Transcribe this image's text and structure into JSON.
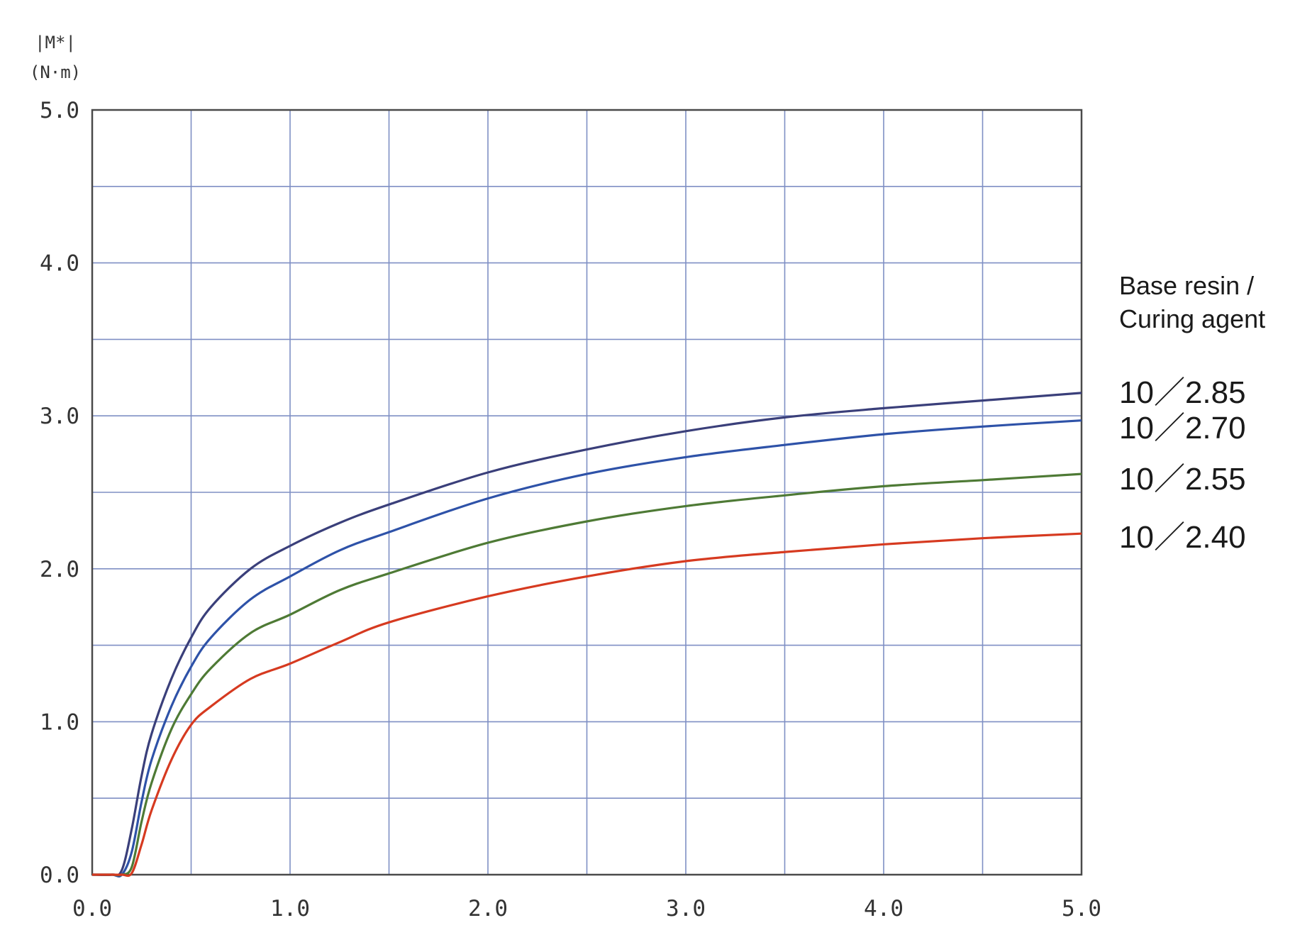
{
  "chart_data": {
    "type": "line",
    "title": "",
    "ylabel_line1": "|M*|",
    "ylabel_line2": "(N·m)",
    "xlabel": "",
    "xlim": [
      0,
      5
    ],
    "ylim": [
      0,
      5
    ],
    "grid": true,
    "x_ticks": [
      "0.0",
      "1.0",
      "2.0",
      "3.0",
      "4.0",
      "5.0"
    ],
    "y_ticks": [
      "0.0",
      "1.0",
      "2.0",
      "3.0",
      "4.0",
      "5.0"
    ],
    "legend_title_line1": "Base resin /",
    "legend_title_line2": "Curing agent",
    "legend_placement": "right",
    "x": [
      0.0,
      0.1,
      0.15,
      0.2,
      0.25,
      0.3,
      0.4,
      0.5,
      0.6,
      0.8,
      1.0,
      1.25,
      1.5,
      2.0,
      2.5,
      3.0,
      3.5,
      4.0,
      4.5,
      5.0
    ],
    "series": [
      {
        "name": "10／2.85",
        "color": "#3a3f7a",
        "values": [
          0.0,
          0.0,
          0.03,
          0.3,
          0.65,
          0.92,
          1.28,
          1.55,
          1.75,
          2.0,
          2.15,
          2.3,
          2.42,
          2.63,
          2.78,
          2.9,
          2.99,
          3.05,
          3.1,
          3.15
        ]
      },
      {
        "name": "10／2.70",
        "color": "#2e52a8",
        "values": [
          0.0,
          0.0,
          0.0,
          0.15,
          0.48,
          0.75,
          1.1,
          1.36,
          1.55,
          1.8,
          1.95,
          2.12,
          2.24,
          2.46,
          2.62,
          2.73,
          2.81,
          2.88,
          2.93,
          2.97
        ]
      },
      {
        "name": "10／2.55",
        "color": "#4e7a35",
        "values": [
          0.0,
          0.0,
          0.0,
          0.05,
          0.35,
          0.6,
          0.95,
          1.18,
          1.35,
          1.58,
          1.7,
          1.86,
          1.97,
          2.17,
          2.31,
          2.41,
          2.48,
          2.54,
          2.58,
          2.62
        ]
      },
      {
        "name": "10／2.40",
        "color": "#d63a20",
        "values": [
          0.0,
          0.0,
          0.0,
          0.01,
          0.2,
          0.42,
          0.75,
          0.98,
          1.1,
          1.28,
          1.38,
          1.52,
          1.65,
          1.82,
          1.95,
          2.05,
          2.11,
          2.16,
          2.2,
          2.23
        ]
      }
    ]
  }
}
